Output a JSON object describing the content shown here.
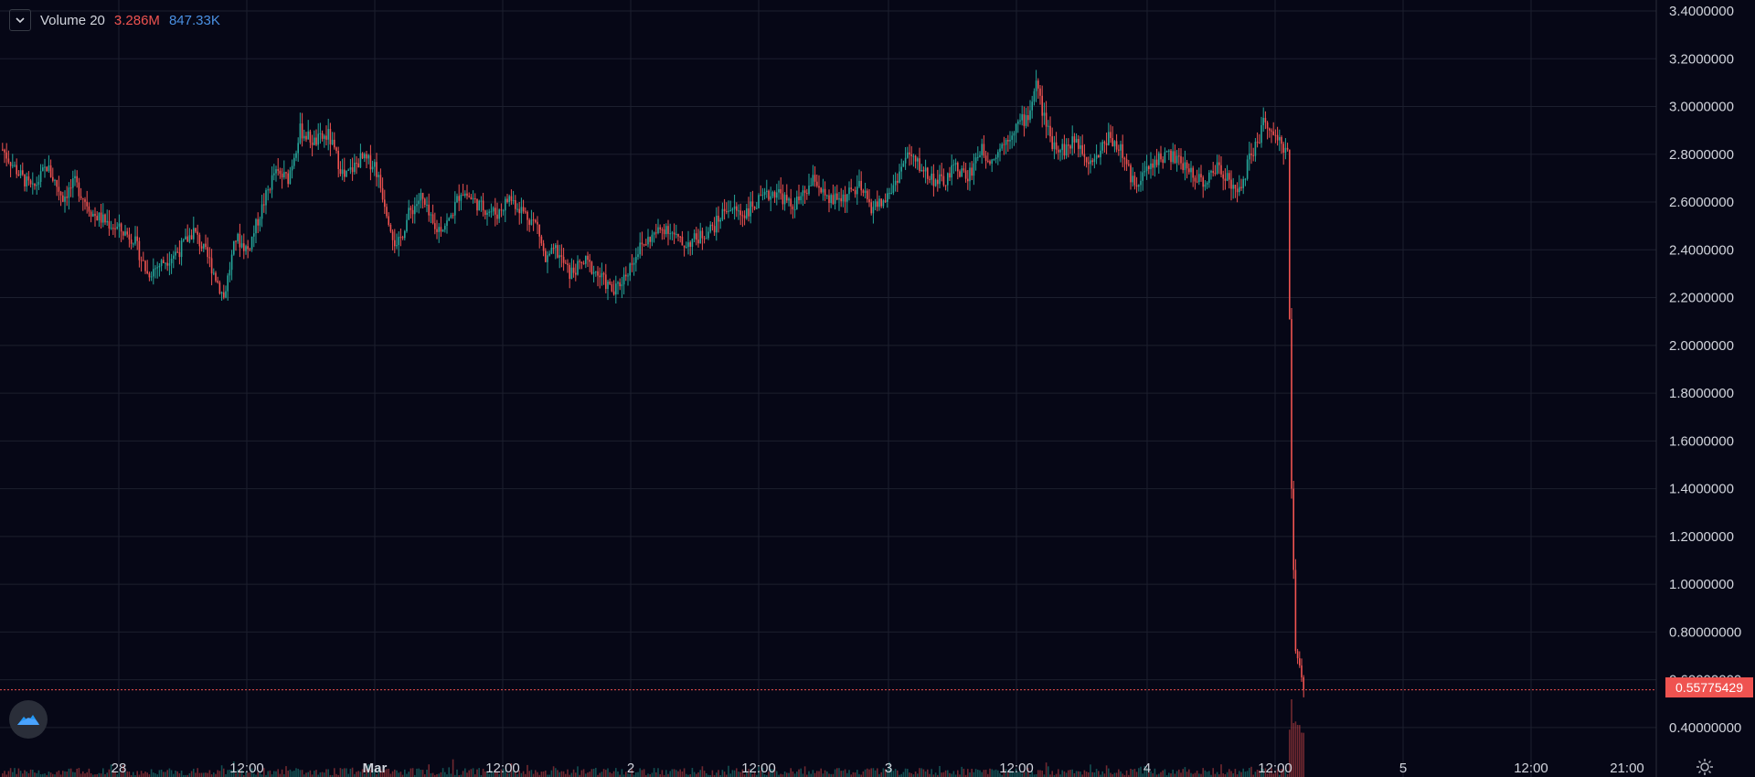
{
  "legend": {
    "indicator": "Volume 20",
    "volume_value": "3.286M",
    "ma_value": "847.33K"
  },
  "last_price_label": "0.55775429",
  "icons": {
    "collapse": "chevron-down-icon",
    "logo": "tradingview-logo-icon",
    "settings": "gear-icon"
  },
  "colors": {
    "up": "#26a69a",
    "down": "#ef5350",
    "background": "#060716",
    "grid": "#1c1f2e",
    "volume_ma": "#4a90e2"
  },
  "chart_data": {
    "type": "candlestick",
    "y_axis_side": "right",
    "ylim": [
      0.3,
      3.4
    ],
    "y_ticks": [
      "3.4000000",
      "3.2000000",
      "3.0000000",
      "2.8000000",
      "2.6000000",
      "2.4000000",
      "2.2000000",
      "2.0000000",
      "1.8000000",
      "1.6000000",
      "1.4000000",
      "1.2000000",
      "1.0000000",
      "0.80000000",
      "0.60000000",
      "0.40000000"
    ],
    "x_ticks": [
      "28",
      "12:00",
      "Mar",
      "12:00",
      "2",
      "12:00",
      "3",
      "12:00",
      "4",
      "12:00",
      "5",
      "12:00",
      "21:00"
    ],
    "last_price": 0.55775429,
    "price_path": [
      [
        0,
        2.82
      ],
      [
        8,
        2.72
      ],
      [
        15,
        2.65
      ],
      [
        22,
        2.75
      ],
      [
        30,
        2.62
      ],
      [
        36,
        2.68
      ],
      [
        45,
        2.55
      ],
      [
        55,
        2.5
      ],
      [
        65,
        2.45
      ],
      [
        72,
        2.3
      ],
      [
        80,
        2.35
      ],
      [
        88,
        2.4
      ],
      [
        95,
        2.48
      ],
      [
        103,
        2.35
      ],
      [
        110,
        2.2
      ],
      [
        116,
        2.45
      ],
      [
        122,
        2.4
      ],
      [
        130,
        2.6
      ],
      [
        135,
        2.72
      ],
      [
        142,
        2.7
      ],
      [
        148,
        2.9
      ],
      [
        155,
        2.85
      ],
      [
        162,
        2.88
      ],
      [
        170,
        2.7
      ],
      [
        178,
        2.78
      ],
      [
        185,
        2.76
      ],
      [
        190,
        2.6
      ],
      [
        196,
        2.4
      ],
      [
        202,
        2.55
      ],
      [
        208,
        2.62
      ],
      [
        215,
        2.48
      ],
      [
        222,
        2.52
      ],
      [
        228,
        2.65
      ],
      [
        238,
        2.58
      ],
      [
        246,
        2.55
      ],
      [
        252,
        2.62
      ],
      [
        260,
        2.55
      ],
      [
        266,
        2.5
      ],
      [
        270,
        2.35
      ],
      [
        275,
        2.4
      ],
      [
        282,
        2.3
      ],
      [
        290,
        2.35
      ],
      [
        298,
        2.28
      ],
      [
        304,
        2.22
      ],
      [
        310,
        2.3
      ],
      [
        316,
        2.4
      ],
      [
        322,
        2.45
      ],
      [
        330,
        2.5
      ],
      [
        338,
        2.42
      ],
      [
        346,
        2.45
      ],
      [
        354,
        2.5
      ],
      [
        360,
        2.58
      ],
      [
        368,
        2.55
      ],
      [
        376,
        2.6
      ],
      [
        385,
        2.65
      ],
      [
        392,
        2.58
      ],
      [
        398,
        2.62
      ],
      [
        404,
        2.7
      ],
      [
        410,
        2.6
      ],
      [
        418,
        2.62
      ],
      [
        426,
        2.66
      ],
      [
        432,
        2.58
      ],
      [
        438,
        2.6
      ],
      [
        442,
        2.65
      ],
      [
        450,
        2.8
      ],
      [
        456,
        2.75
      ],
      [
        462,
        2.7
      ],
      [
        468,
        2.68
      ],
      [
        474,
        2.75
      ],
      [
        480,
        2.7
      ],
      [
        486,
        2.82
      ],
      [
        492,
        2.78
      ],
      [
        498,
        2.85
      ],
      [
        504,
        2.92
      ],
      [
        510,
        2.96
      ],
      [
        514,
        3.1
      ],
      [
        518,
        2.95
      ],
      [
        522,
        2.85
      ],
      [
        528,
        2.82
      ],
      [
        534,
        2.86
      ],
      [
        540,
        2.78
      ],
      [
        545,
        2.8
      ],
      [
        550,
        2.88
      ],
      [
        556,
        2.82
      ],
      [
        562,
        2.68
      ],
      [
        568,
        2.72
      ],
      [
        574,
        2.78
      ],
      [
        580,
        2.8
      ],
      [
        586,
        2.76
      ],
      [
        592,
        2.72
      ],
      [
        598,
        2.68
      ],
      [
        604,
        2.75
      ],
      [
        610,
        2.7
      ],
      [
        614,
        2.62
      ],
      [
        620,
        2.78
      ],
      [
        624,
        2.85
      ],
      [
        628,
        2.95
      ],
      [
        632,
        2.86
      ],
      [
        636,
        2.84
      ],
      [
        639,
        2.82
      ],
      [
        641,
        1.4
      ],
      [
        643,
        0.72
      ],
      [
        645,
        0.66
      ],
      [
        647,
        0.56
      ]
    ],
    "volume_bars_note": "low volume throughout, large spike on final crash candles"
  }
}
